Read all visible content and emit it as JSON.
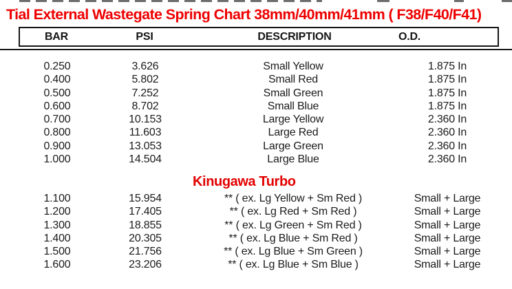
{
  "title": "Tial External Wastegate Spring Chart 38mm/40mm/41mm ( F38/F40/F41)",
  "watermark": "Kinugawa Turbo",
  "colors": {
    "title_red": "#ee0000",
    "watermark_red": "#e30000",
    "text_black": "#1a1a1a",
    "border_black": "#151515",
    "background": "#ffffff"
  },
  "table": {
    "headers": [
      "BAR",
      "PSI",
      "DESCRIPTION",
      "O.D."
    ],
    "sections": [
      {
        "rows": [
          [
            "0.250",
            "3.626",
            "Small Yellow",
            "1.875 In"
          ],
          [
            "0.400",
            "5.802",
            "Small Red",
            "1.875 In"
          ],
          [
            "0.500",
            "7.252",
            "Small Green",
            "1.875 In"
          ],
          [
            "0.600",
            "8.702",
            "Small Blue",
            "1.875 In"
          ],
          [
            "0.700",
            "10.153",
            "Large Yellow",
            "2.360 In"
          ],
          [
            "0.800",
            "11.603",
            "Large Red",
            "2.360 In"
          ],
          [
            "0.900",
            "13.053",
            "Large Green",
            "2.360 In"
          ],
          [
            "1.000",
            "14.504",
            "Large Blue",
            "2.360 In"
          ]
        ]
      },
      {
        "rows": [
          [
            "1.100",
            "15.954",
            "** ( ex. Lg Yellow + Sm Red )",
            "Small + Large"
          ],
          [
            "1.200",
            "17.405",
            "** ( ex. Lg Red + Sm Red )",
            "Small + Large"
          ],
          [
            "1.300",
            "18.855",
            "** ( ex. Lg Green + Sm Red )",
            "Small + Large"
          ],
          [
            "1.400",
            "20.305",
            "** ( ex. Lg Blue + Sm Red )",
            "Small + Large"
          ],
          [
            "1.500",
            "21.756",
            "** ( ex. Lg Blue + Sm Green )",
            "Small + Large"
          ],
          [
            "1.600",
            "23.206",
            "** ( ex. Lg Blue + Sm Blue )",
            "Small + Large"
          ]
        ]
      }
    ]
  }
}
